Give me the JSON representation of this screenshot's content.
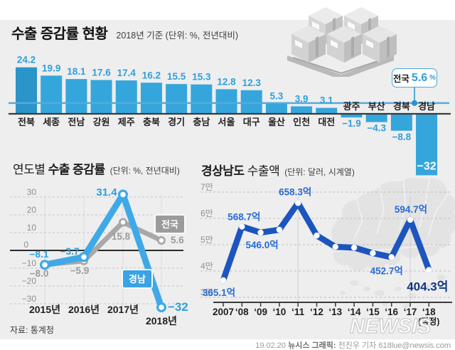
{
  "header": {
    "title": "수출 증감률 현황",
    "subtitle": "2018년 기준 (단위: %, 전년대비)"
  },
  "national_callout": {
    "label": "전국",
    "value": "5.6",
    "unit": "%"
  },
  "sections": {
    "yearly": {
      "title_prefix": "연도별 ",
      "title_bold": "수출 증감률",
      "subtitle": "(단위: %, 전년대비)",
      "source": "자료: 통계청"
    },
    "gyeongnam": {
      "title_bold": "경상남도",
      "title_suffix": " 수출액",
      "subtitle": "(단위: 달러, 시계열)"
    }
  },
  "footer": {
    "date": "19.02.20",
    "credit_bold": "뉴시스 그래픽:",
    "credit_rest": "전진우 기자 618lue@newsis.com",
    "watermark": "NEWSIS"
  },
  "colors": {
    "panel_bg": "#eeeeee",
    "bar_blue": "#35a6dc",
    "bar_blue_dark": "#2b94c8",
    "value_blue": "#2f9fdd",
    "avg_line_blue": "#54abdd",
    "gray_series": "#a8a8a8",
    "gyeongnam_series": "#3fa9e8",
    "export_line_navy": "#1d55be",
    "export_label_blue": "#2a6cd4",
    "export_label_dark": "#12357f"
  },
  "chart_data": [
    {
      "type": "bar",
      "title": "수출 증감률 현황",
      "subtitle": "2018년 기준 (단위: %, 전년대비)",
      "categories": [
        "전북",
        "세종",
        "전남",
        "강원",
        "제주",
        "충북",
        "경기",
        "충남",
        "서울",
        "대구",
        "울산",
        "인천",
        "대전",
        "광주",
        "부산",
        "경북",
        "경남"
      ],
      "values": [
        24.2,
        19.9,
        18.1,
        17.6,
        17.4,
        16.2,
        15.5,
        15.3,
        12.8,
        12.3,
        5.3,
        3.9,
        3.1,
        -1.9,
        -4.3,
        -8.8,
        -32
      ],
      "value_labels": [
        "24.2",
        "19.9",
        "18.1",
        "17.6",
        "17.4",
        "16.2",
        "15.5",
        "15.3",
        "12.8",
        "12.3",
        "5.3",
        "3.9",
        "3.1",
        "−1.9",
        "−4.3",
        "−8.8",
        "−32"
      ],
      "national_average": 5.6,
      "national_average_label": "전국 5.6%"
    },
    {
      "type": "line",
      "title": "연도별 수출 증감률",
      "subtitle": "(단위: %, 전년대비)",
      "categories": [
        "2015년",
        "2016년",
        "2017년",
        "2018년"
      ],
      "yticks": [
        30,
        20,
        10,
        0,
        -10,
        -20,
        -30
      ],
      "ylim": [
        -35,
        33
      ],
      "grid": "dashed",
      "series": [
        {
          "name": "전국",
          "color": "#a8a8a8",
          "values": [
            -8.0,
            -5.9,
            15.8,
            5.6
          ],
          "value_labels": [
            "−8.0",
            "−5.9",
            "15.8",
            "5.6"
          ]
        },
        {
          "name": "경남",
          "color": "#3fa9e8",
          "values": [
            -8.1,
            -3.7,
            31.4,
            -32
          ],
          "value_labels": [
            "−8.1",
            "−3.7",
            "31.4",
            "−32"
          ]
        }
      ],
      "source": "자료: 통계청"
    },
    {
      "type": "line",
      "title": "경상남도 수출액",
      "subtitle": "(단위: 달러, 시계열)",
      "categories": [
        "2007",
        "‘08",
        "‘09",
        "‘10",
        "‘11",
        "‘12",
        "‘13",
        "‘14",
        "‘15",
        "‘16",
        "‘17",
        "‘18"
      ],
      "last_category_note": "(잠정)",
      "yticks": [
        "7만",
        "6만",
        "5만",
        "4만",
        "3만"
      ],
      "ytick_values": [
        7,
        6,
        5,
        4,
        3
      ],
      "grid": "dashed",
      "series": [
        {
          "name": "경상남도 수출액",
          "color": "#1d55be",
          "values": [
            3.651,
            5.687,
            5.46,
            5.57,
            6.583,
            5.35,
            4.92,
            4.89,
            4.68,
            4.527,
            5.947,
            4.043
          ]
        }
      ],
      "point_labels": {
        "0": "365.1억",
        "1": "568.7억",
        "2": "546.0억",
        "4": "658.3억",
        "9": "452.7억",
        "10": "594.7억",
        "11": "404.3억"
      }
    }
  ]
}
